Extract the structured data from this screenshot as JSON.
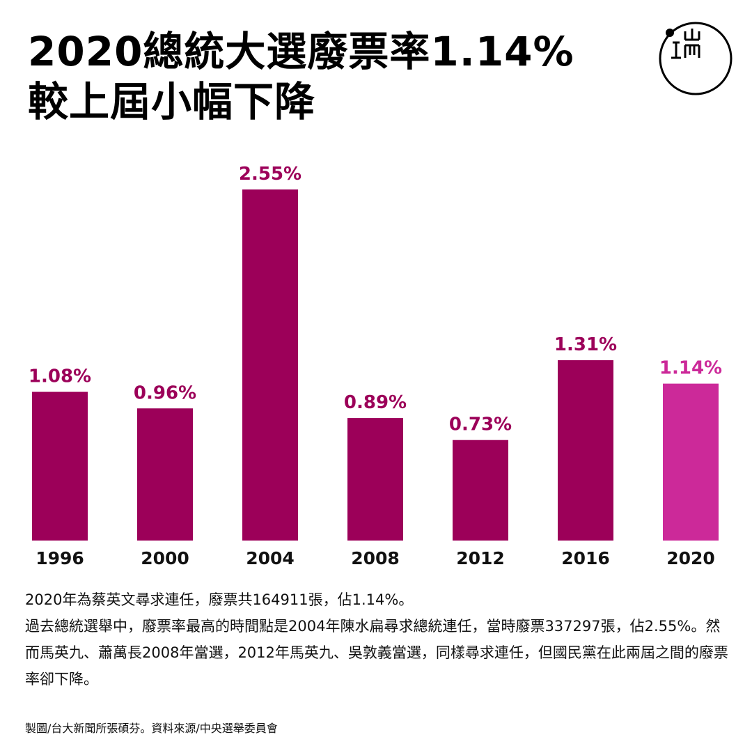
{
  "header": {
    "title_line1": "2020總統大選廢票率1.14%",
    "title_line2": "較上屆小幅下降"
  },
  "logo": {
    "icon": "端-logo-icon"
  },
  "chart_data": {
    "type": "bar",
    "categories": [
      "1996",
      "2000",
      "2004",
      "2008",
      "2012",
      "2016",
      "2020"
    ],
    "values": [
      1.08,
      0.96,
      2.55,
      0.89,
      0.73,
      1.31,
      1.14
    ],
    "value_labels": [
      "1.08%",
      "0.96%",
      "2.55%",
      "0.89%",
      "0.73%",
      "1.31%",
      "1.14%"
    ],
    "unit": "%",
    "ylim": [
      0,
      2.55
    ],
    "grid": false,
    "legend": "none",
    "colors": {
      "default": "#9c0059",
      "highlight": "#cc2999",
      "highlight_category": "2020"
    }
  },
  "description": {
    "para1": "2020年為蔡英文尋求連任，廢票共164911張，佔1.14%。",
    "para2": "過去總統選舉中，廢票率最高的時間點是2004年陳水扁尋求總統連任，當時廢票337297張，佔2.55%。然而馬英九、蕭萬長2008年當選，2012年馬英九、吳敦義當選，同樣尋求連任，但國民黨在此兩屆之間的廢票率卻下降。"
  },
  "credits": {
    "text": "製圖/台大新聞所張碩芬。資料來源/中央選舉委員會"
  }
}
